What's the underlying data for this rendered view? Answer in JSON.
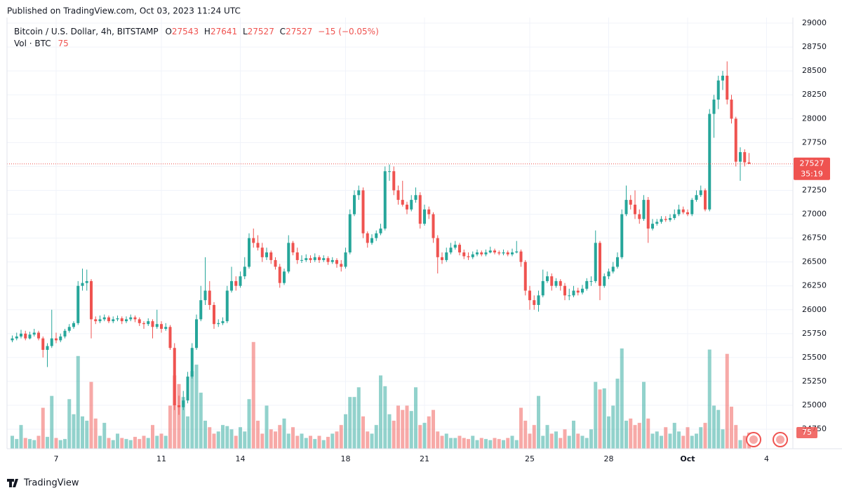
{
  "header": {
    "published": "Published on TradingView.com, Oct 03, 2023 11:24 UTC",
    "brand": "TradingView"
  },
  "chart_data": {
    "type": "candlestick",
    "title": "Bitcoin / U.S. Dollar, 4h, BITSTAMP",
    "ohlc_labels": [
      "O",
      "H",
      "L",
      "C"
    ],
    "change_label": "−15 (−0.05%)",
    "volume_label": "Vol · BTC",
    "countdown": "35:19",
    "up_color": "#26a69a",
    "down_color": "#ef5350",
    "grid": true,
    "xlim": [
      -1.2,
      178
    ],
    "xticks": [
      {
        "value": 10,
        "label": "7"
      },
      {
        "value": 34,
        "label": "11"
      },
      {
        "value": 52,
        "label": "14"
      },
      {
        "value": 76,
        "label": "18"
      },
      {
        "value": 94,
        "label": "21"
      },
      {
        "value": 118,
        "label": "25"
      },
      {
        "value": 136,
        "label": "28"
      },
      {
        "value": 154,
        "label": "Oct"
      },
      {
        "value": 172,
        "label": "4"
      }
    ],
    "ylim": [
      24545,
      29059
    ],
    "yticks": [
      24750,
      25000,
      25250,
      25500,
      25750,
      26000,
      26250,
      26500,
      26750,
      27000,
      27250,
      27500,
      27750,
      28000,
      28250,
      28500,
      28750,
      29000
    ],
    "y2lim": [
      0,
      2000
    ],
    "ohlc": [
      [
        25680,
        25730,
        25660,
        25700
      ],
      [
        25700,
        25760,
        25680,
        25720
      ],
      [
        25720,
        25790,
        25700,
        25750
      ],
      [
        25750,
        25780,
        25680,
        25700
      ],
      [
        25700,
        25770,
        25690,
        25740
      ],
      [
        25740,
        25800,
        25720,
        25760
      ],
      [
        25760,
        25780,
        25680,
        25700
      ],
      [
        25700,
        25720,
        25500,
        25580
      ],
      [
        25580,
        25650,
        25400,
        25620
      ],
      [
        25620,
        26000,
        25600,
        25700
      ],
      [
        25700,
        25760,
        25650,
        25680
      ],
      [
        25680,
        25750,
        25660,
        25720
      ],
      [
        25720,
        25800,
        25700,
        25780
      ],
      [
        25780,
        25850,
        25760,
        25820
      ],
      [
        25820,
        25880,
        25800,
        25860
      ],
      [
        25860,
        26300,
        25840,
        26250
      ],
      [
        26250,
        26430,
        26200,
        26280
      ],
      [
        26280,
        26420,
        26200,
        26300
      ],
      [
        26300,
        26320,
        25700,
        25900
      ],
      [
        25900,
        25930,
        25850,
        25880
      ],
      [
        25880,
        25940,
        25860,
        25900
      ],
      [
        25900,
        25950,
        25880,
        25920
      ],
      [
        25920,
        25940,
        25860,
        25880
      ],
      [
        25880,
        25930,
        25860,
        25900
      ],
      [
        25900,
        25940,
        25880,
        25910
      ],
      [
        25910,
        25930,
        25850,
        25880
      ],
      [
        25880,
        25930,
        25860,
        25900
      ],
      [
        25900,
        25950,
        25880,
        25920
      ],
      [
        25920,
        25940,
        25870,
        25900
      ],
      [
        25900,
        25920,
        25830,
        25860
      ],
      [
        25860,
        25880,
        25800,
        25850
      ],
      [
        25850,
        25910,
        25830,
        25880
      ],
      [
        25880,
        25900,
        25700,
        25820
      ],
      [
        25820,
        26000,
        25800,
        25850
      ],
      [
        25850,
        25880,
        25760,
        25800
      ],
      [
        25800,
        25860,
        25780,
        25820
      ],
      [
        25820,
        25840,
        25580,
        25600
      ],
      [
        25600,
        25650,
        24950,
        25000
      ],
      [
        25000,
        25100,
        24900,
        24980
      ],
      [
        24980,
        25150,
        24950,
        25050
      ],
      [
        25050,
        25350,
        25020,
        25300
      ],
      [
        25300,
        25650,
        25280,
        25600
      ],
      [
        25600,
        25950,
        25580,
        25900
      ],
      [
        25900,
        26250,
        25880,
        26100
      ],
      [
        26100,
        26550,
        26050,
        26200
      ],
      [
        26200,
        26300,
        26000,
        26050
      ],
      [
        26050,
        26080,
        25800,
        25850
      ],
      [
        25850,
        25900,
        25820,
        25860
      ],
      [
        25860,
        25920,
        25840,
        25880
      ],
      [
        25880,
        26250,
        25860,
        26200
      ],
      [
        26200,
        26450,
        26180,
        26300
      ],
      [
        26300,
        26350,
        26200,
        26250
      ],
      [
        26250,
        26400,
        26230,
        26350
      ],
      [
        26350,
        26550,
        26320,
        26450
      ],
      [
        26450,
        26800,
        26430,
        26750
      ],
      [
        26750,
        26850,
        26650,
        26700
      ],
      [
        26700,
        26780,
        26620,
        26650
      ],
      [
        26650,
        26700,
        26500,
        26550
      ],
      [
        26550,
        26650,
        26520,
        26600
      ],
      [
        26600,
        26620,
        26480,
        26520
      ],
      [
        26520,
        26550,
        26420,
        26450
      ],
      [
        26450,
        26480,
        26230,
        26280
      ],
      [
        26280,
        26430,
        26260,
        26400
      ],
      [
        26400,
        26780,
        26380,
        26700
      ],
      [
        26700,
        26720,
        26570,
        26600
      ],
      [
        26600,
        26650,
        26480,
        26520
      ],
      [
        26520,
        26570,
        26490,
        26520
      ],
      [
        26520,
        26580,
        26500,
        26540
      ],
      [
        26540,
        26570,
        26490,
        26520
      ],
      [
        26520,
        26590,
        26500,
        26550
      ],
      [
        26550,
        26570,
        26490,
        26520
      ],
      [
        26520,
        26570,
        26500,
        26540
      ],
      [
        26540,
        26560,
        26470,
        26500
      ],
      [
        26500,
        26550,
        26480,
        26520
      ],
      [
        26520,
        26540,
        26440,
        26480
      ],
      [
        26480,
        26520,
        26400,
        26450
      ],
      [
        26450,
        26650,
        26430,
        26600
      ],
      [
        26600,
        27050,
        26580,
        27000
      ],
      [
        27000,
        27250,
        26980,
        27200
      ],
      [
        27200,
        27300,
        27150,
        27250
      ],
      [
        27250,
        27280,
        26750,
        26800
      ],
      [
        26800,
        26820,
        26650,
        26700
      ],
      [
        26700,
        26790,
        26680,
        26750
      ],
      [
        26750,
        26830,
        26720,
        26800
      ],
      [
        26800,
        26900,
        26780,
        26850
      ],
      [
        26850,
        27500,
        26830,
        27450
      ],
      [
        27450,
        27520,
        27350,
        27450
      ],
      [
        27450,
        27500,
        27200,
        27250
      ],
      [
        27250,
        27300,
        27100,
        27150
      ],
      [
        27150,
        27350,
        27080,
        27100
      ],
      [
        27100,
        27130,
        27000,
        27050
      ],
      [
        27050,
        27200,
        27030,
        27150
      ],
      [
        27150,
        27280,
        27120,
        27200
      ],
      [
        27200,
        27230,
        26850,
        26900
      ],
      [
        26900,
        27100,
        26880,
        27050
      ],
      [
        27050,
        27080,
        26950,
        27000
      ],
      [
        27000,
        27020,
        26700,
        26750
      ],
      [
        26750,
        26780,
        26380,
        26550
      ],
      [
        26550,
        26600,
        26480,
        26520
      ],
      [
        26520,
        26650,
        26500,
        26600
      ],
      [
        26600,
        26700,
        26580,
        26650
      ],
      [
        26650,
        26720,
        26630,
        26680
      ],
      [
        26680,
        26700,
        26570,
        26600
      ],
      [
        26600,
        26630,
        26530,
        26560
      ],
      [
        26560,
        26600,
        26520,
        26550
      ],
      [
        26550,
        26610,
        26530,
        26580
      ],
      [
        26580,
        26630,
        26560,
        26600
      ],
      [
        26600,
        26620,
        26560,
        26580
      ],
      [
        26580,
        26630,
        26560,
        26600
      ],
      [
        26600,
        26660,
        26590,
        26620
      ],
      [
        26620,
        26640,
        26580,
        26600
      ],
      [
        26600,
        26620,
        26570,
        26590
      ],
      [
        26590,
        26630,
        26570,
        26600
      ],
      [
        26600,
        26620,
        26560,
        26580
      ],
      [
        26580,
        26640,
        26560,
        26600
      ],
      [
        26600,
        26720,
        26590,
        26610
      ],
      [
        26610,
        26630,
        26450,
        26500
      ],
      [
        26500,
        26520,
        26150,
        26200
      ],
      [
        26200,
        26250,
        26000,
        26100
      ],
      [
        26100,
        26150,
        26000,
        26050
      ],
      [
        26050,
        26200,
        25980,
        26150
      ],
      [
        26150,
        26420,
        26130,
        26300
      ],
      [
        26300,
        26400,
        26280,
        26350
      ],
      [
        26350,
        26380,
        26200,
        26250
      ],
      [
        26250,
        26330,
        26230,
        26300
      ],
      [
        26300,
        26320,
        26200,
        26250
      ],
      [
        26250,
        26280,
        26100,
        26150
      ],
      [
        26150,
        26220,
        26100,
        26150
      ],
      [
        26150,
        26250,
        26130,
        26200
      ],
      [
        26200,
        26230,
        26150,
        26180
      ],
      [
        26180,
        26260,
        26160,
        26220
      ],
      [
        26220,
        26330,
        26200,
        26300
      ],
      [
        26300,
        26350,
        26250,
        26300
      ],
      [
        26300,
        26830,
        26280,
        26700
      ],
      [
        26700,
        26720,
        26100,
        26250
      ],
      [
        26250,
        26380,
        26230,
        26350
      ],
      [
        26350,
        26430,
        26320,
        26400
      ],
      [
        26400,
        26500,
        26380,
        26450
      ],
      [
        26450,
        26600,
        26430,
        26550
      ],
      [
        26550,
        27050,
        26530,
        27000
      ],
      [
        27000,
        27300,
        26980,
        27150
      ],
      [
        27150,
        27200,
        27050,
        27100
      ],
      [
        27100,
        27250,
        26950,
        27000
      ],
      [
        27000,
        27050,
        26900,
        26950
      ],
      [
        26950,
        27200,
        26930,
        27150
      ],
      [
        27150,
        27180,
        26700,
        26850
      ],
      [
        26850,
        26950,
        26830,
        26900
      ],
      [
        26900,
        26950,
        26880,
        26920
      ],
      [
        26920,
        26980,
        26900,
        26950
      ],
      [
        26950,
        26980,
        26920,
        26940
      ],
      [
        26940,
        27000,
        26920,
        26960
      ],
      [
        26960,
        27050,
        26940,
        27000
      ],
      [
        27000,
        27100,
        26980,
        27050
      ],
      [
        27050,
        27080,
        27000,
        27020
      ],
      [
        27020,
        27050,
        26980,
        27000
      ],
      [
        27000,
        27170,
        26980,
        27150
      ],
      [
        27150,
        27250,
        27130,
        27200
      ],
      [
        27200,
        27300,
        27180,
        27250
      ],
      [
        27250,
        27270,
        27030,
        27050
      ],
      [
        27050,
        28100,
        27030,
        28050
      ],
      [
        28050,
        28250,
        27800,
        28200
      ],
      [
        28200,
        28450,
        28100,
        28400
      ],
      [
        28400,
        28500,
        28300,
        28450
      ],
      [
        28450,
        28600,
        28150,
        28200
      ],
      [
        28200,
        28250,
        27950,
        28000
      ],
      [
        28000,
        28020,
        27500,
        27550
      ],
      [
        27550,
        27700,
        27350,
        27650
      ],
      [
        27650,
        27680,
        27500,
        27543
      ],
      [
        27543,
        27641,
        27527,
        27527
      ]
    ],
    "volume": [
      60,
      45,
      110,
      50,
      45,
      40,
      60,
      190,
      55,
      245,
      50,
      40,
      45,
      230,
      160,
      430,
      150,
      130,
      310,
      140,
      60,
      120,
      50,
      40,
      70,
      50,
      45,
      40,
      55,
      45,
      60,
      50,
      110,
      60,
      70,
      60,
      200,
      340,
      300,
      240,
      150,
      360,
      390,
      260,
      130,
      100,
      70,
      80,
      110,
      105,
      90,
      60,
      100,
      80,
      230,
      495,
      130,
      70,
      200,
      90,
      80,
      110,
      140,
      70,
      100,
      60,
      70,
      50,
      60,
      45,
      60,
      40,
      55,
      70,
      80,
      110,
      160,
      240,
      240,
      285,
      150,
      80,
      70,
      110,
      340,
      290,
      160,
      130,
      200,
      180,
      200,
      175,
      285,
      110,
      120,
      150,
      180,
      80,
      60,
      70,
      50,
      50,
      60,
      50,
      45,
      60,
      40,
      50,
      45,
      40,
      50,
      45,
      40,
      50,
      60,
      40,
      190,
      130,
      70,
      110,
      245,
      60,
      110,
      70,
      80,
      50,
      90,
      60,
      130,
      70,
      60,
      50,
      90,
      310,
      275,
      280,
      150,
      200,
      325,
      465,
      130,
      140,
      110,
      120,
      310,
      140,
      70,
      80,
      60,
      100,
      70,
      120,
      80,
      60,
      100,
      60,
      70,
      100,
      120,
      460,
      200,
      180,
      90,
      440,
      195,
      110,
      40,
      60,
      75
    ]
  }
}
